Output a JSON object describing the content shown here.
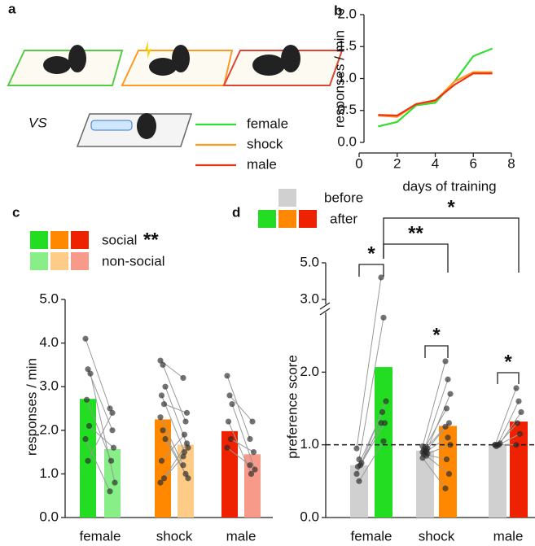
{
  "figure": {
    "panel_a": {
      "label": "a",
      "vs": "VS"
    }
  },
  "chart_data": [
    {
      "type": "line",
      "panel": "b",
      "xlabel": "days of training",
      "ylabel": "responses / min",
      "x": [
        1,
        2,
        3,
        4,
        5,
        6,
        7
      ],
      "xlim": [
        0,
        8
      ],
      "xticks": [
        0,
        2,
        4,
        6,
        8
      ],
      "ylim": [
        0,
        2
      ],
      "yticks": [
        {
          "value": 0,
          "label": "0.0"
        },
        {
          "value": 0.5,
          "label": "0.5"
        },
        {
          "value": 1,
          "label": "1.0"
        },
        {
          "value": 1.5,
          "label": "1.5"
        },
        {
          "value": 2,
          "label": "2.0"
        }
      ],
      "series": [
        {
          "name": "female",
          "color": "#33dd33",
          "values": [
            0.25,
            0.32,
            0.58,
            0.62,
            0.95,
            1.35,
            1.47
          ]
        },
        {
          "name": "shock",
          "color": "#ff9922",
          "values": [
            0.42,
            0.4,
            0.6,
            0.65,
            0.95,
            1.1,
            1.1
          ]
        },
        {
          "name": "male",
          "color": "#ee3311",
          "values": [
            0.43,
            0.42,
            0.6,
            0.66,
            0.9,
            1.08,
            1.08
          ]
        }
      ]
    },
    {
      "type": "paired_bar",
      "panel": "c",
      "ylabel": "responses / min",
      "categories": [
        "female",
        "shock",
        "male"
      ],
      "ylim": [
        0,
        5
      ],
      "yticks": [
        {
          "value": 0,
          "label": "0.0"
        },
        {
          "value": 1,
          "label": "1.0"
        },
        {
          "value": 2,
          "label": "2.0"
        },
        {
          "value": 3,
          "label": "3.0"
        },
        {
          "value": 4,
          "label": "4.0"
        },
        {
          "value": 5,
          "label": "5.0"
        }
      ],
      "legend_annotation": "**",
      "series": [
        {
          "name": "social",
          "colors": [
            "#22dd22",
            "#ff8800",
            "#ee2200"
          ],
          "values": [
            2.72,
            2.25,
            1.98
          ],
          "points": [
            [
              4.1,
              3.4,
              3.3,
              2.7,
              2.1,
              1.8,
              1.3
            ],
            [
              3.6,
              3.5,
              3.0,
              2.8,
              2.6,
              2.3,
              2.0,
              1.8,
              1.3,
              0.9,
              0.8
            ],
            [
              3.25,
              2.8,
              2.6,
              2.2,
              1.8,
              1.6
            ]
          ]
        },
        {
          "name": "non-social",
          "colors": [
            "#88ee88",
            "#ffcc88",
            "#f89a8a"
          ],
          "values": [
            1.57,
            1.67,
            1.45
          ],
          "points": [
            [
              2.5,
              2.0,
              0.8,
              1.3,
              1.6,
              0.6,
              2.4
            ],
            [
              3.2,
              2.2,
              1.6,
              1.5,
              2.4,
              1.2,
              1.0,
              0.9,
              1.9,
              1.7,
              1.4
            ],
            [
              1.8,
              2.2,
              1.1,
              1.0,
              1.5,
              1.2
            ]
          ]
        }
      ]
    },
    {
      "type": "paired_bar",
      "panel": "d",
      "ylabel": "preference score",
      "categories": [
        "female",
        "shock",
        "male"
      ],
      "ylim": [
        0,
        5
      ],
      "ybreak": 3,
      "reference_line": 1,
      "yticks": [
        {
          "value": 0,
          "label": "0.0"
        },
        {
          "value": 1,
          "label": "1.0"
        },
        {
          "value": 2,
          "label": "2.0"
        },
        {
          "value": 3,
          "label": "3.0"
        },
        {
          "value": 5,
          "label": "5.0"
        }
      ],
      "annotations": [
        {
          "text": "*"
        },
        {
          "text": "**"
        },
        {
          "text": "*"
        },
        {
          "text": "*"
        },
        {
          "text": "*"
        }
      ],
      "series": [
        {
          "name": "before",
          "colors": [
            "#d0d0d0",
            "#d0d0d0",
            "#d0d0d0"
          ],
          "values": [
            0.72,
            0.92,
            1.0
          ],
          "points": [
            [
              0.95,
              0.8,
              0.75,
              0.7,
              0.72,
              0.6,
              0.5
            ],
            [
              0.98,
              0.96,
              0.95,
              0.93,
              0.92,
              0.9,
              0.9,
              0.88,
              0.87,
              0.85,
              0.82
            ],
            [
              1.0,
              1.0,
              1.02,
              0.98,
              1.0,
              1.0
            ]
          ]
        },
        {
          "name": "after",
          "colors": [
            "#22dd22",
            "#ff8800",
            "#ee2200"
          ],
          "values": [
            2.07,
            1.26,
            1.32
          ],
          "points": [
            [
              4.2,
              2.75,
              1.6,
              1.45,
              1.3,
              1.3,
              1.05
            ],
            [
              2.15,
              1.9,
              1.7,
              1.5,
              1.3,
              1.25,
              1.1,
              1.0,
              0.8,
              0.6,
              0.4
            ],
            [
              1.78,
              1.6,
              1.45,
              1.3,
              1.15,
              1.0
            ]
          ]
        }
      ]
    }
  ]
}
